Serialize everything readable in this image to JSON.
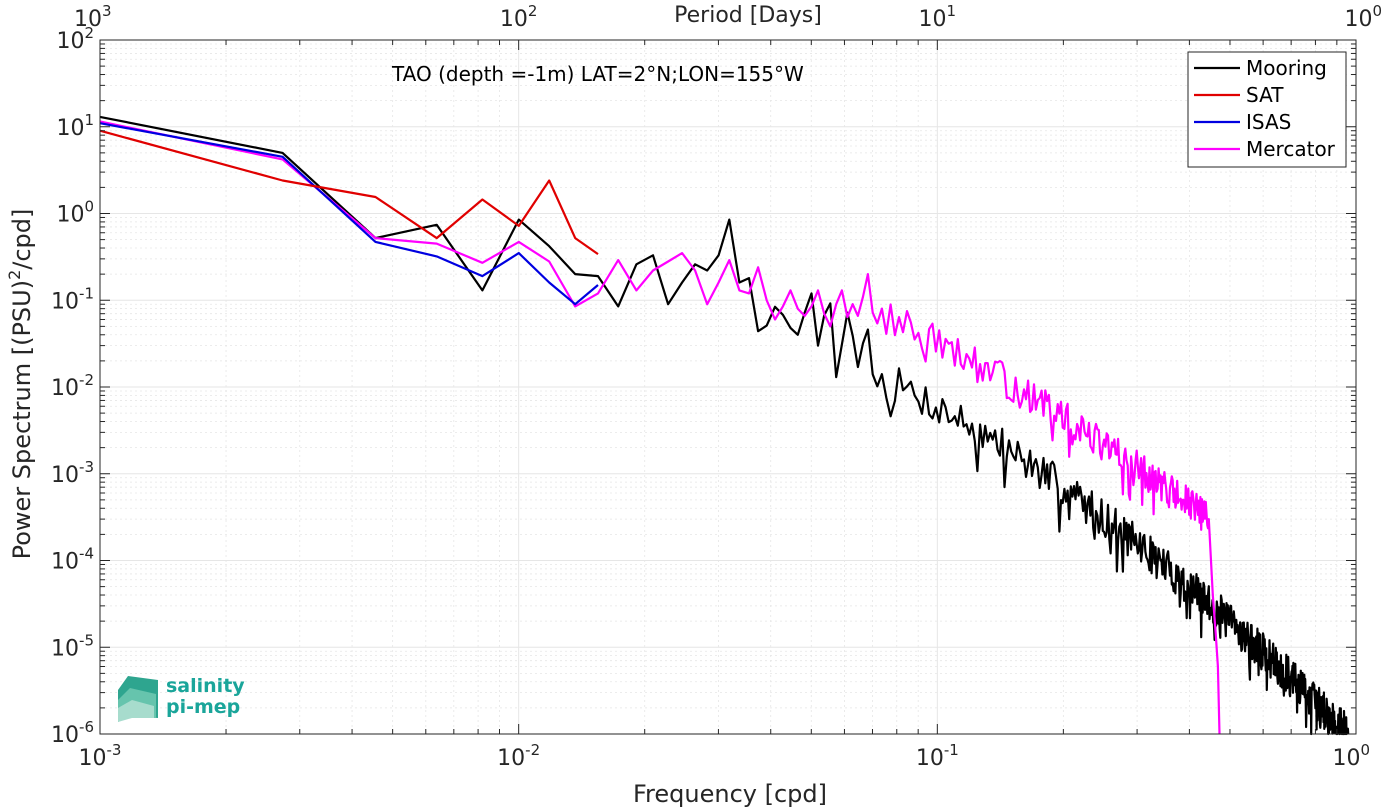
{
  "chart_data": {
    "type": "line",
    "title": "TAO (depth =-1m) LAT=2°N;LON=155°W",
    "xlabel": "Frequency [cpd]",
    "ylabel": "Power Spectrum [(PSU)²/cpd]",
    "ylabel_parts": {
      "before": "Power Spectrum [(PSU)",
      "sup": "2",
      "after": "/cpd]"
    },
    "top_xlabel": "Period [Days]",
    "x_scale": "log",
    "y_scale": "log",
    "xlim": [
      0.001,
      1
    ],
    "ylim": [
      1e-06,
      100
    ],
    "grid": true,
    "legend_position": "top-right",
    "x_ticks": [
      {
        "value": 0.001,
        "base": "10",
        "exp": "-3"
      },
      {
        "value": 0.01,
        "base": "10",
        "exp": "-2"
      },
      {
        "value": 0.1,
        "base": "10",
        "exp": "-1"
      },
      {
        "value": 1,
        "base": "10",
        "exp": "0"
      }
    ],
    "y_ticks": [
      {
        "value": 100,
        "base": "10",
        "exp": "2"
      },
      {
        "value": 10,
        "base": "10",
        "exp": "1"
      },
      {
        "value": 1,
        "base": "10",
        "exp": "0"
      },
      {
        "value": 0.1,
        "base": "10",
        "exp": "-1"
      },
      {
        "value": 0.01,
        "base": "10",
        "exp": "-2"
      },
      {
        "value": 0.001,
        "base": "10",
        "exp": "-3"
      },
      {
        "value": 0.0001,
        "base": "10",
        "exp": "-4"
      },
      {
        "value": 1e-05,
        "base": "10",
        "exp": "-5"
      },
      {
        "value": 1e-06,
        "base": "10",
        "exp": "-6"
      }
    ],
    "top_ticks": [
      {
        "period": 1000,
        "base": "10",
        "exp": "3"
      },
      {
        "period": 100,
        "base": "10",
        "exp": "2"
      },
      {
        "period": 10,
        "base": "10",
        "exp": "1"
      },
      {
        "period": 1,
        "base": "10",
        "exp": "0"
      }
    ],
    "series": [
      {
        "name": "Mooring",
        "color": "#000000",
        "x": [
          0.001,
          0.00273,
          0.00455,
          0.00637,
          0.00819,
          0.01001,
          0.01183,
          0.01365,
          0.01547,
          0.01729,
          0.01911,
          0.02093,
          0.02275,
          0.02457,
          0.02639,
          0.02821,
          0.03003,
          0.03185,
          0.03367,
          0.03549,
          0.03731,
          0.03913,
          0.04095,
          0.04277,
          0.04459,
          0.04641,
          0.04823,
          0.05005,
          0.05187,
          0.05369,
          0.05551,
          0.05733,
          0.05915,
          0.06097,
          0.06279,
          0.06461,
          0.06643,
          0.06825,
          0.07007
        ],
        "y": [
          13,
          5,
          0.52,
          0.74,
          0.13,
          0.85,
          0.42,
          0.2,
          0.19,
          0.085,
          0.26,
          0.33,
          0.09,
          0.16,
          0.26,
          0.22,
          0.33,
          0.85,
          0.16,
          0.18,
          0.044,
          0.051,
          0.084,
          0.068,
          0.048,
          0.04,
          0.072,
          0.12,
          0.03,
          0.067,
          0.092,
          0.013,
          0.031,
          0.072,
          0.039,
          0.017,
          0.032,
          0.046,
          0.014
        ],
        "tail": {
          "x_start": 0.07007,
          "x_end": 0.96,
          "y_start": 0.014,
          "y_end": 1e-06,
          "bend": 0.7,
          "jitter": 0.22,
          "dx": 0.00182,
          "seed": 7
        }
      },
      {
        "name": "SAT",
        "color": "#e00000",
        "x": [
          0.001,
          0.00273,
          0.00455,
          0.00637,
          0.00819,
          0.01001,
          0.01183,
          0.01365,
          0.01547
        ],
        "y": [
          9,
          2.4,
          1.55,
          0.52,
          1.45,
          0.72,
          2.4,
          0.52,
          0.34
        ]
      },
      {
        "name": "ISAS",
        "color": "#0000e0",
        "x": [
          0.001,
          0.00273,
          0.00455,
          0.00637,
          0.00819,
          0.01001,
          0.01183,
          0.01365,
          0.01547
        ],
        "y": [
          11,
          4.5,
          0.47,
          0.32,
          0.19,
          0.35,
          0.16,
          0.09,
          0.15
        ]
      },
      {
        "name": "Mercator",
        "color": "#ff00ff",
        "x": [
          0.001,
          0.00273,
          0.00455,
          0.00637,
          0.00819,
          0.01001,
          0.01183,
          0.01365,
          0.01547,
          0.01729,
          0.01911,
          0.02093,
          0.02275,
          0.02457,
          0.02639,
          0.02821,
          0.03003,
          0.03185,
          0.03367,
          0.03549,
          0.03731,
          0.03913,
          0.04095,
          0.04277,
          0.04459,
          0.04641,
          0.04823,
          0.05005,
          0.05187,
          0.05369,
          0.05551,
          0.05733,
          0.05915,
          0.06097,
          0.06279,
          0.06461,
          0.06643,
          0.06825,
          0.07007
        ],
        "y": [
          11.5,
          4.2,
          0.52,
          0.45,
          0.27,
          0.47,
          0.28,
          0.085,
          0.12,
          0.29,
          0.13,
          0.22,
          0.28,
          0.35,
          0.22,
          0.09,
          0.16,
          0.29,
          0.13,
          0.12,
          0.24,
          0.1,
          0.06,
          0.085,
          0.13,
          0.08,
          0.066,
          0.085,
          0.13,
          0.07,
          0.05,
          0.09,
          0.13,
          0.064,
          0.09,
          0.066,
          0.11,
          0.2,
          0.072
        ],
        "tail": {
          "x_start": 0.07007,
          "x_end": 0.445,
          "y_start": 0.072,
          "y_end": 0.0003,
          "bend": 0.45,
          "jitter": 0.2,
          "dx": 0.00182,
          "seed": 13,
          "cliff": {
            "x": [
              0.445,
              0.455,
              0.462,
              0.468,
              0.472
            ],
            "y": [
              0.0003,
              4e-05,
              1.5e-05,
              6e-06,
              1e-06
            ]
          }
        }
      }
    ]
  },
  "logo": {
    "line1": "salinity",
    "line2": "pi-mep"
  },
  "colors": {
    "axis": "#262626",
    "grid": "#e6e6e6",
    "logo": "#1aa59a"
  }
}
